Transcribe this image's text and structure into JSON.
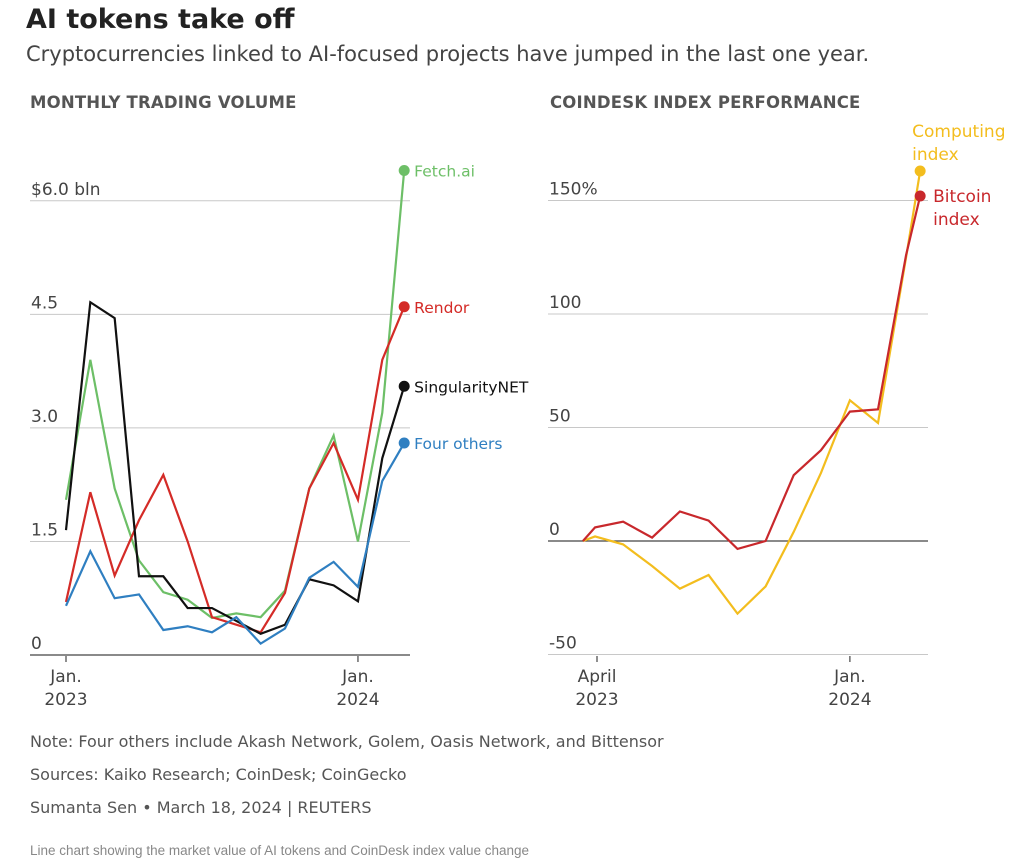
{
  "title": "AI tokens take off",
  "subtitle": "Cryptocurrencies linked to AI-focused projects have jumped in the last one year.",
  "footer": {
    "note": "Note: Four others include Akash Network, Golem, Oasis Network, and Bittensor",
    "sources": "Sources: Kaiko Research; CoinDesk; CoinGecko",
    "credit": "Sumanta Sen • March 18, 2024 | REUTERS",
    "alt": "Line chart showing the market value of AI tokens and CoinDesk index value change"
  },
  "chart_data": [
    {
      "type": "line",
      "title": "MONTHLY TRADING VOLUME",
      "xlabel": "",
      "ylabel": "",
      "x_unit": "months since Jan 2023",
      "x": [
        0,
        1,
        2,
        3,
        4,
        5,
        6,
        7,
        8,
        9,
        10,
        11,
        12,
        13,
        13.9
      ],
      "xlim": [
        0,
        13.9
      ],
      "ylim": [
        0,
        6.4
      ],
      "yticks": [
        {
          "v": 0,
          "label": "0"
        },
        {
          "v": 1.5,
          "label": "1.5"
        },
        {
          "v": 3,
          "label": "3.0"
        },
        {
          "v": 4.5,
          "label": "4.5"
        },
        {
          "v": 6,
          "label": "$6.0 bln"
        }
      ],
      "xticks": [
        {
          "v": 0,
          "l1": "Jan.",
          "l2": "2023"
        },
        {
          "v": 12,
          "l1": "Jan.",
          "l2": "2024"
        }
      ],
      "grid": true,
      "series": [
        {
          "name": "Fetch.ai",
          "color": "#6dbf67",
          "values": [
            2.05,
            3.9,
            2.2,
            1.25,
            0.83,
            0.73,
            0.49,
            0.55,
            0.5,
            0.85,
            2.2,
            2.9,
            1.5,
            3.2,
            6.4
          ]
        },
        {
          "name": "Rendor",
          "color": "#d42b27",
          "values": [
            0.7,
            2.15,
            1.05,
            1.78,
            2.38,
            1.5,
            0.5,
            0.4,
            0.3,
            0.82,
            2.2,
            2.8,
            2.05,
            3.9,
            4.6
          ]
        },
        {
          "name": "SingularityNET",
          "color": "#111111",
          "values": [
            1.65,
            4.66,
            4.45,
            1.04,
            1.04,
            0.62,
            0.62,
            0.45,
            0.28,
            0.4,
            1.0,
            0.92,
            0.71,
            2.6,
            3.55
          ]
        },
        {
          "name": "Four others",
          "color": "#2f7fc1",
          "values": [
            0.65,
            1.37,
            0.75,
            0.8,
            0.33,
            0.38,
            0.3,
            0.5,
            0.15,
            0.35,
            1.02,
            1.23,
            0.9,
            2.3,
            2.8
          ]
        }
      ]
    },
    {
      "type": "line",
      "title": "COINDESK INDEX PERFORMANCE",
      "xlabel": "",
      "ylabel": "",
      "x_unit": "months since Jan 2023",
      "x": [
        2.5,
        2.93,
        3.93,
        4.96,
        5.95,
        6.97,
        8,
        9,
        10,
        10.97,
        12,
        13,
        14,
        14.5
      ],
      "xlim": [
        2,
        15.3
      ],
      "ylim": [
        -50,
        165
      ],
      "yticks": [
        {
          "v": -50,
          "label": "-50"
        },
        {
          "v": 0,
          "label": "0"
        },
        {
          "v": 50,
          "label": "50"
        },
        {
          "v": 100,
          "label": "100"
        },
        {
          "v": 150,
          "label": "150%"
        }
      ],
      "xticks": [
        {
          "v": 3,
          "l1": "April",
          "l2": "2023"
        },
        {
          "v": 12,
          "l1": "Jan.",
          "l2": "2024"
        }
      ],
      "grid": true,
      "series": [
        {
          "name": "Computing index",
          "label_lines": [
            "Computing",
            "index"
          ],
          "color": "#f3bd1e",
          "values": [
            0,
            2,
            -1.5,
            -11,
            -21,
            -15,
            -32,
            -20,
            4,
            30,
            62,
            52,
            125,
            163
          ]
        },
        {
          "name": "Bitcoin index",
          "label_lines": [
            "Bitcoin",
            "index"
          ],
          "color": "#c8282c",
          "values": [
            0,
            6,
            8.5,
            1.5,
            13,
            9,
            -3.5,
            0,
            29,
            40,
            57,
            58,
            126,
            152
          ]
        }
      ]
    }
  ]
}
